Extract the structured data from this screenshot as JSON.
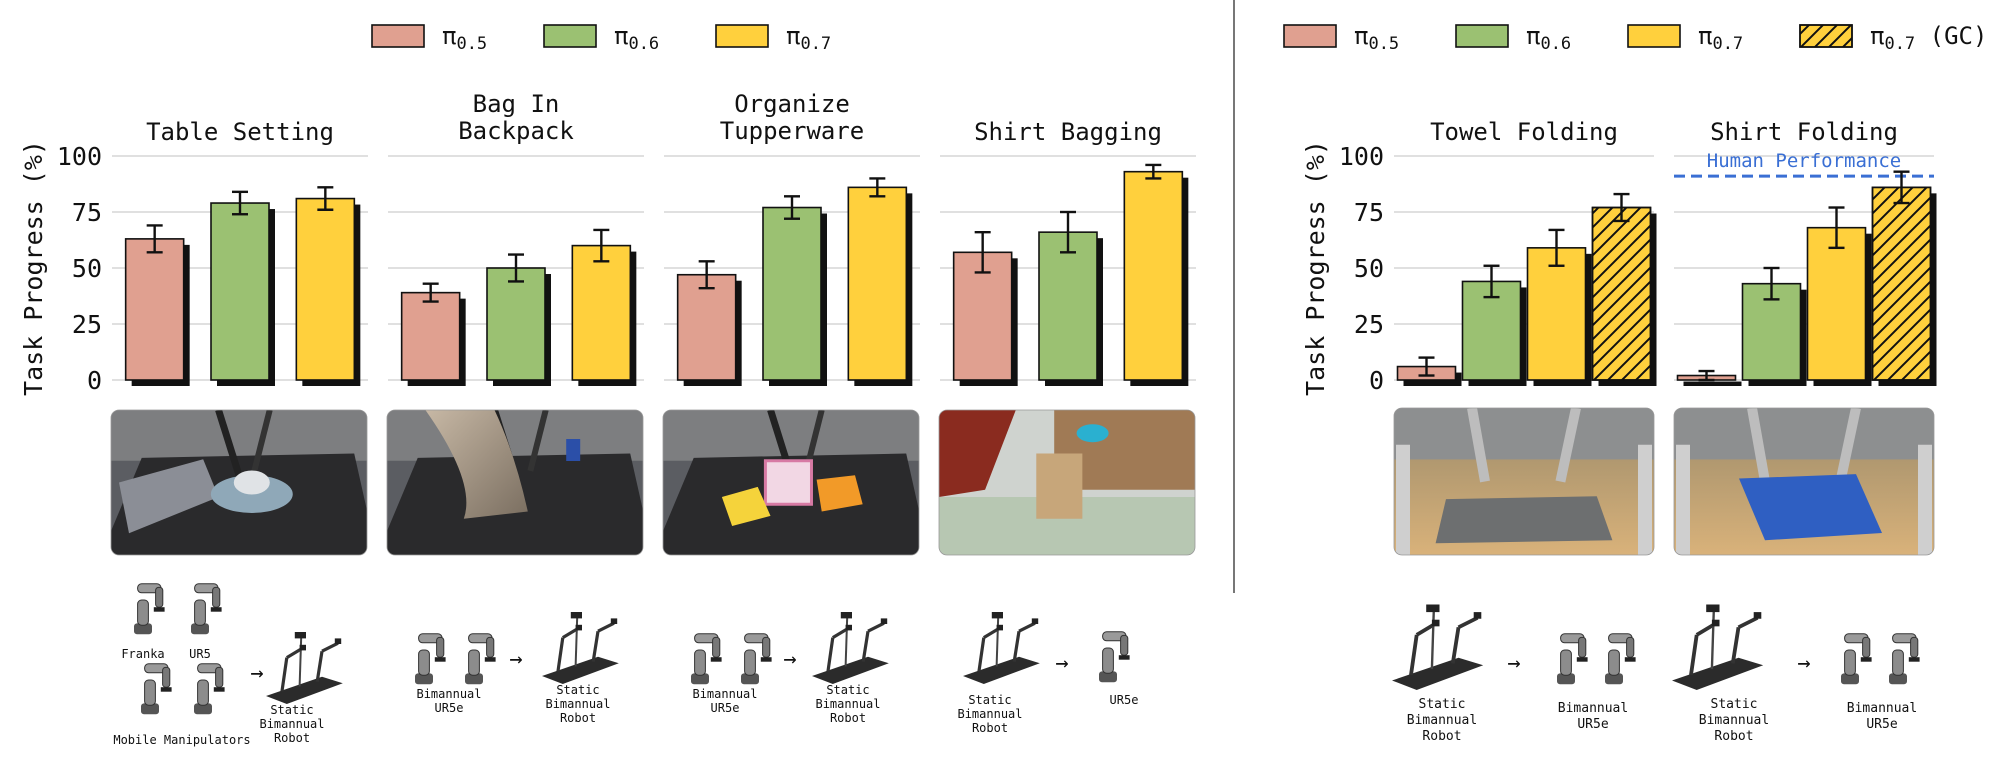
{
  "legends": [
    {
      "entries": [
        {
          "name": "π",
          "sub": "0.5",
          "color": "#e0a090",
          "hatch": false
        },
        {
          "name": "π",
          "sub": "0.6",
          "color": "#9bc172",
          "hatch": false
        },
        {
          "name": "π",
          "sub": "0.7",
          "color": "#ffd03d",
          "hatch": false
        }
      ]
    },
    {
      "entries": [
        {
          "name": "π",
          "sub": "0.5",
          "color": "#e0a090",
          "hatch": false
        },
        {
          "name": "π",
          "sub": "0.6",
          "color": "#9bc172",
          "hatch": false
        },
        {
          "name": "π",
          "sub": "0.7",
          "color": "#ffd03d",
          "hatch": false
        },
        {
          "name": "π",
          "sub": "0.7",
          "suffix": " (GC)",
          "color": "#ffd03d",
          "hatch": true
        }
      ]
    }
  ],
  "colors": {
    "pi05": "#e0a090",
    "pi06": "#9bc172",
    "pi07": "#ffd03d",
    "human_line": "#3a6fd4"
  },
  "chart_data": [
    {
      "type": "bar",
      "title": "Table Setting",
      "ylabel": "Task Progress (%)",
      "ylim": [
        0,
        100
      ],
      "yticks": [
        0,
        25,
        50,
        75,
        100
      ],
      "grid": true,
      "series": [
        {
          "values": [
            63
          ],
          "err": [
            6
          ]
        },
        {
          "values": [
            79
          ],
          "err": [
            5
          ]
        },
        {
          "values": [
            81
          ],
          "err": [
            5
          ]
        }
      ]
    },
    {
      "type": "bar",
      "title": "Bag In\nBackpack",
      "ylim": [
        0,
        100
      ],
      "grid": true,
      "series": [
        {
          "values": [
            39
          ],
          "err": [
            4
          ]
        },
        {
          "values": [
            50
          ],
          "err": [
            6
          ]
        },
        {
          "values": [
            60
          ],
          "err": [
            7
          ]
        }
      ]
    },
    {
      "type": "bar",
      "title": "Organize\nTupperware",
      "ylim": [
        0,
        100
      ],
      "grid": true,
      "series": [
        {
          "values": [
            47
          ],
          "err": [
            6
          ]
        },
        {
          "values": [
            77
          ],
          "err": [
            5
          ]
        },
        {
          "values": [
            86
          ],
          "err": [
            4
          ]
        }
      ]
    },
    {
      "type": "bar",
      "title": "Shirt Bagging",
      "ylim": [
        0,
        100
      ],
      "grid": true,
      "series": [
        {
          "values": [
            57
          ],
          "err": [
            9
          ]
        },
        {
          "values": [
            66
          ],
          "err": [
            9
          ]
        },
        {
          "values": [
            93
          ],
          "err": [
            3
          ]
        }
      ]
    },
    {
      "type": "bar",
      "title": "Towel Folding",
      "ylabel": "Task Progress (%)",
      "ylim": [
        0,
        100
      ],
      "yticks": [
        0,
        25,
        50,
        75,
        100
      ],
      "grid": true,
      "series": [
        {
          "values": [
            6
          ],
          "err": [
            4
          ]
        },
        {
          "values": [
            44
          ],
          "err": [
            7
          ]
        },
        {
          "values": [
            59
          ],
          "err": [
            8
          ]
        },
        {
          "values": [
            77
          ],
          "err": [
            6
          ]
        }
      ]
    },
    {
      "type": "bar",
      "title": "Shirt Folding",
      "ylim": [
        0,
        100
      ],
      "grid": true,
      "reference_line": {
        "value": 91,
        "label": "Human Performance"
      },
      "series": [
        {
          "values": [
            2
          ],
          "err": [
            2
          ]
        },
        {
          "values": [
            43
          ],
          "err": [
            7
          ]
        },
        {
          "values": [
            68
          ],
          "err": [
            9
          ]
        },
        {
          "values": [
            86
          ],
          "err": [
            7
          ]
        }
      ]
    }
  ],
  "robot_labels": [
    [
      "Franka",
      "UR5",
      "Mobile Manipulators",
      "Static\nBimannual\nRobot"
    ],
    [
      "Bimannual\nUR5e",
      "Static\nBimannual\nRobot"
    ],
    [
      "Bimannual\nUR5e",
      "Static\nBimannual\nRobot"
    ],
    [
      "Static\nBimannual\nRobot",
      "UR5e"
    ],
    [
      "Static\nBimannual\nRobot",
      "Bimannual\nUR5e"
    ],
    [
      "Static\nBimannual\nRobot",
      "Bimannual\nUR5e"
    ]
  ],
  "arrow_glyph": "→"
}
